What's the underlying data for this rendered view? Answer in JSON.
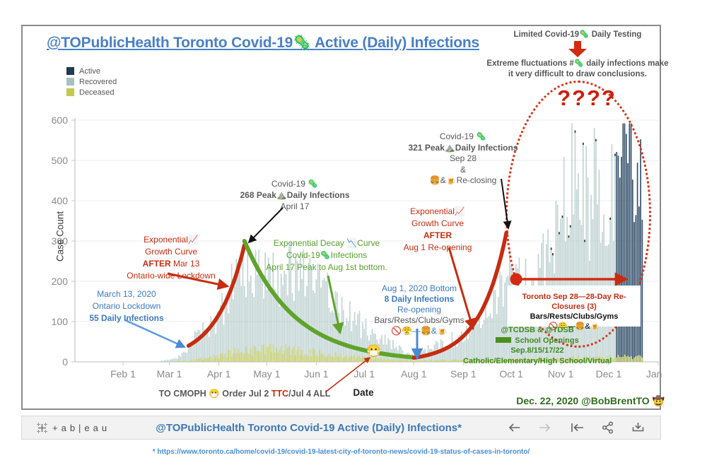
{
  "header": {
    "title": "@TOPublicHealth Toronto Covid-19🦠 Active (Daily) Infections"
  },
  "legend": {
    "items": [
      {
        "label": "Active",
        "color": "#1f3a52"
      },
      {
        "label": "Recovered",
        "color": "#a5c2c0"
      },
      {
        "label": "Deceased",
        "color": "#c2c94f"
      }
    ]
  },
  "top_note": {
    "l1": "Limited Covid-19🦠 Daily Testing",
    "l2": "Extreme fluctuations #🦠 daily infections make",
    "l3": "it very difficult to draw conclusions."
  },
  "axes": {
    "y_label": "Case Count",
    "y_ticks": [
      0,
      100,
      200,
      300,
      400,
      500,
      600
    ],
    "x_label": "Date",
    "x_ticks": [
      "Feb 1",
      "Mar 1",
      "Apr 1",
      "May 1",
      "Jun 1",
      "Jul 1",
      "Aug 1",
      "Sep 1",
      "Oct 1",
      "Nov 1",
      "Dec 1",
      "Jan 1"
    ]
  },
  "annotations": {
    "questions": "????",
    "exp_growth_1": {
      "l1": "Exponential📈",
      "l2": "Growth Curve",
      "l3b": "AFTER",
      "l3": " Mar 13",
      "l4": "Ontario-wide Lockdown"
    },
    "mar13": {
      "l1": "March 13, 2020",
      "l2": "Ontario Lockdown",
      "l3": "55 Daily Infections"
    },
    "apr17": {
      "l1": "Covid-19 🦠",
      "l2": "268 Peak⛰️Daily Infections",
      "l3": "April 17"
    },
    "decay": {
      "l1": "Exponential Decay 📉Curve",
      "l2": "Covid-19🦠Infections",
      "l3": "April 17 Peak to Aug 1st bottom."
    },
    "exp_growth_2": {
      "l1": "Exponential📈",
      "l2": "Growth Curve",
      "l3": "AFTER",
      "l4": "Aug 1 Re-opening"
    },
    "sep28": {
      "l1": "Covid-19 🦠",
      "l2": "321 Peak⛰️Daily Infections",
      "l3": "Sep 28",
      "l4": "&",
      "l5": "🍔&🍺Re-closing"
    },
    "aug1": {
      "l1": "Aug 1, 2020 Bottom",
      "l2": "8 Daily Infections",
      "l3": "Re-opening",
      "l4": "Bars/Rests/Clubs/Gyms",
      "l5": "🚫😤—🍔&🍺"
    },
    "schools": {
      "l1": "@TCDSB & @TDSB",
      "l2": "School Openings",
      "l3": "Sep.8/15/17/22",
      "l4": "Catholic/Elementary/High School/Virtual"
    },
    "reclosures": {
      "l1": "Toronto Sep 28—28-Day Re-Closures (3)",
      "l2": "Bars/Rests/Clubs/Gyms",
      "l3": "🚫😤—🍔&🍺"
    },
    "cmoph": {
      "pre": "TO CMOPH 😷 Order Jul 2 ",
      "ttc": "TTC",
      "post": "/Jul 4 ALL"
    },
    "mask_marker": "😷",
    "signature": "Dec. 22, 2020 @BobBrentTO 🤠"
  },
  "footer": {
    "logo_text": "+ab|eau",
    "title": "@TOPublicHealth Toronto Covid-19 Active (Daily) Infections*",
    "footnote": "* https://www.toronto.ca/home/covid-19/covid-19-latest-city-of-toronto-news/covid-19-status-of-cases-in-toronto/"
  },
  "chart_data": {
    "type": "bar",
    "title": "@TOPublicHealth Toronto Covid-19 Active (Daily) Infections",
    "xlabel": "Date",
    "ylabel": "Case Count",
    "ylim": [
      0,
      620
    ],
    "x_ticks": [
      "Feb 1",
      "Mar 1",
      "Apr 1",
      "May 1",
      "Jun 1",
      "Jul 1",
      "Aug 1",
      "Sep 1",
      "Oct 1",
      "Nov 1",
      "Dec 1",
      "Jan 1"
    ],
    "x_tick_days": [
      0,
      29,
      60,
      90,
      121,
      151,
      182,
      213,
      243,
      274,
      304,
      335
    ],
    "days_total": 335,
    "bar_day_range": [
      24,
      325
    ],
    "jitter_seed": 7,
    "series": [
      {
        "name": "Recovered",
        "color": "#9cbcba",
        "day_range": [
          24,
          308
        ],
        "anchors": [
          [
            24,
            3
          ],
          [
            33,
            8
          ],
          [
            41,
            40
          ],
          [
            48,
            75
          ],
          [
            55,
            100
          ],
          [
            60,
            120
          ],
          [
            69,
            200
          ],
          [
            76,
            265
          ],
          [
            80,
            230
          ],
          [
            90,
            235
          ],
          [
            99,
            215
          ],
          [
            109,
            235
          ],
          [
            121,
            195
          ],
          [
            130,
            165
          ],
          [
            140,
            125
          ],
          [
            151,
            85
          ],
          [
            160,
            60
          ],
          [
            170,
            40
          ],
          [
            178,
            22
          ],
          [
            182,
            14
          ],
          [
            186,
            25
          ],
          [
            191,
            32
          ],
          [
            201,
            48
          ],
          [
            213,
            65
          ],
          [
            222,
            115
          ],
          [
            232,
            165
          ],
          [
            240,
            230
          ],
          [
            244,
            195
          ],
          [
            251,
            200
          ],
          [
            257,
            215
          ],
          [
            264,
            245
          ],
          [
            271,
            300
          ],
          [
            274,
            340
          ],
          [
            278,
            430
          ],
          [
            281,
            555
          ],
          [
            284,
            420
          ],
          [
            288,
            430
          ],
          [
            292,
            380
          ],
          [
            295,
            450
          ],
          [
            299,
            390
          ],
          [
            304,
            420
          ],
          [
            308,
            470
          ]
        ]
      },
      {
        "name": "Active",
        "color": "#2c4a66",
        "day_range": [
          309,
          325
        ],
        "anchors": [
          [
            309,
            430
          ],
          [
            312,
            500
          ],
          [
            315,
            565
          ],
          [
            318,
            540
          ],
          [
            321,
            490
          ],
          [
            325,
            430
          ]
        ]
      },
      {
        "name": "Deceased",
        "color": "#c9cf6e",
        "day_range": [
          24,
          325
        ],
        "anchors": [
          [
            24,
            0
          ],
          [
            41,
            3
          ],
          [
            55,
            10
          ],
          [
            69,
            25
          ],
          [
            76,
            30
          ],
          [
            90,
            32
          ],
          [
            109,
            28
          ],
          [
            121,
            22
          ],
          [
            140,
            15
          ],
          [
            151,
            10
          ],
          [
            170,
            6
          ],
          [
            182,
            3
          ],
          [
            201,
            4
          ],
          [
            222,
            5
          ],
          [
            240,
            7
          ],
          [
            264,
            8
          ],
          [
            281,
            10
          ],
          [
            304,
            12
          ],
          [
            325,
            12
          ]
        ]
      }
    ],
    "curves": [
      {
        "name": "exponential-growth-mar13-apr17",
        "color": "#c62c10",
        "from": [
          41,
          40
        ],
        "to": [
          76,
          290
        ]
      },
      {
        "name": "exponential-decay-apr17-aug1",
        "color": "#5fa32b",
        "from": [
          76,
          300
        ],
        "to": [
          182,
          11
        ]
      },
      {
        "name": "exponential-growth-aug1-sep28",
        "color": "#c62c10",
        "from": [
          182,
          10
        ],
        "to": [
          240,
          321
        ]
      }
    ],
    "key_points": [
      {
        "date": "Mar 13",
        "label": "Ontario Lockdown",
        "daily_infections": 55
      },
      {
        "date": "Apr 17",
        "label": "Peak Daily Infections",
        "daily_infections": 268
      },
      {
        "date": "Aug 1",
        "label": "Bottom",
        "daily_infections": 8
      },
      {
        "date": "Sep 28",
        "label": "Peak Daily Infections",
        "daily_infections": 321
      }
    ]
  }
}
